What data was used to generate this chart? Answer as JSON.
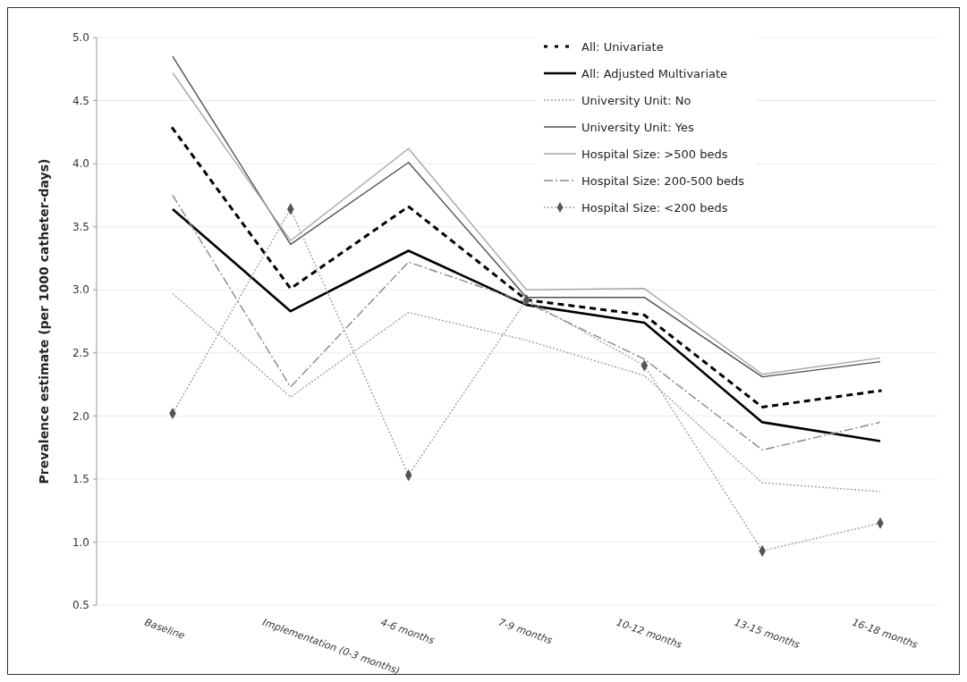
{
  "chart_data": {
    "type": "line",
    "ylabel": "Prevalence estimate (per 1000 catheter-days)",
    "categories": [
      "Baseline",
      "Implementation (0-3 months)",
      "4-6 months",
      "7-9 months",
      "10-12 months",
      "13-15 months",
      "16-18 months"
    ],
    "ylim": [
      0.5,
      5.0
    ],
    "yticks": [
      {
        "value": 0.5,
        "label": "0.5"
      },
      {
        "value": 1,
        "label": "1.0"
      },
      {
        "value": 1.5,
        "label": "1.5"
      },
      {
        "value": 2,
        "label": "2.0"
      },
      {
        "value": 2.5,
        "label": "2.5"
      },
      {
        "value": 3,
        "label": "3.0"
      },
      {
        "value": 3.5,
        "label": "3.5"
      },
      {
        "value": 4,
        "label": "4.0"
      },
      {
        "value": 4.5,
        "label": "4.5"
      },
      {
        "value": 5,
        "label": "5.0"
      }
    ],
    "grid": "y",
    "legend": "top right",
    "series": [
      {
        "name": "All:  Univariate",
        "color": "#000000",
        "line_style": "dashed",
        "marker": "none",
        "values": [
          4.28,
          3.01,
          3.66,
          2.92,
          2.8,
          2.07,
          2.2
        ]
      },
      {
        "name": "All:  Adjusted Multivariate",
        "color": "#000000",
        "line_style": "solid",
        "marker": "none",
        "values": [
          3.64,
          2.83,
          3.31,
          2.88,
          2.74,
          1.95,
          1.8
        ]
      },
      {
        "name": "University Unit: No",
        "color": "#a0a0a0",
        "line_style": "dotted",
        "marker": "none",
        "values": [
          2.97,
          2.15,
          2.82,
          2.6,
          2.32,
          1.47,
          1.4
        ]
      },
      {
        "name": "University Unit: Yes",
        "color": "#505050",
        "line_style": "solid",
        "marker": "none",
        "values": [
          4.85,
          3.36,
          4.01,
          2.94,
          2.94,
          2.31,
          2.43
        ]
      },
      {
        "name": "Hospital Size: >500 beds",
        "color": "#a8a8a8",
        "line_style": "solid",
        "marker": "none",
        "values": [
          4.72,
          3.39,
          4.12,
          3.0,
          3.01,
          2.33,
          2.46
        ]
      },
      {
        "name": "Hospital Size: 200-500 beds",
        "color": "#888888",
        "line_style": "dashed",
        "marker": "none",
        "values": [
          3.75,
          2.23,
          3.22,
          2.9,
          2.45,
          1.73,
          1.95
        ]
      },
      {
        "name": "Hospital Size: <200 beds",
        "color": "#a0a0a0",
        "line_style": "dotted",
        "marker": "diamond",
        "values": [
          2.02,
          3.64,
          1.53,
          2.92,
          2.4,
          0.93,
          1.15
        ]
      }
    ]
  }
}
